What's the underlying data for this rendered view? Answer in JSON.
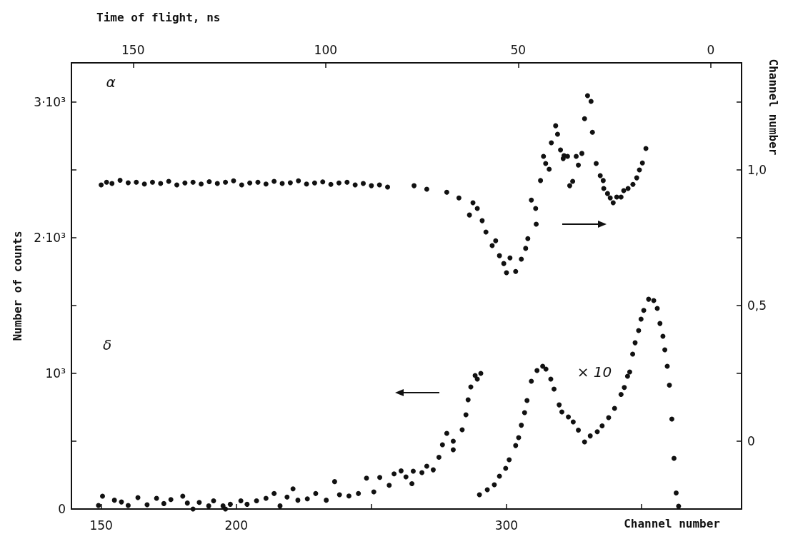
{
  "chart_data": {
    "type": "scatter",
    "xlabel": "Channel number",
    "x2label": "Time of flight, ns",
    "ylabel": "Number of counts",
    "y2label": "Channel number",
    "xlim": [
      139,
      387
    ],
    "xticks": [
      150,
      200,
      {
        "value": 250,
        "label": null
      },
      300,
      {
        "value": 350,
        "label": null
      }
    ],
    "x2lim": [
      166,
      -8
    ],
    "x2ticks": [
      150,
      100,
      50,
      0
    ],
    "ylim": [
      0,
      3290
    ],
    "yticks": [
      0,
      {
        "value": 500,
        "label": null
      },
      {
        "value": 1000,
        "label": "10³"
      },
      {
        "value": 1500,
        "label": null
      },
      {
        "value": 2000,
        "label": "2·10³"
      },
      {
        "value": 2500,
        "label": null
      },
      {
        "value": 3000,
        "label": "3·10³"
      }
    ],
    "y2lim": [
      -0.25,
      1.395
    ],
    "y2ticks": [
      {
        "value": 0,
        "label": "0"
      },
      {
        "value": 0.25,
        "label": null
      },
      {
        "value": 0.5,
        "label": "0,5"
      },
      {
        "value": 0.75,
        "label": null
      },
      {
        "value": 1,
        "label": "1,0"
      },
      {
        "value": 1.25,
        "label": null
      }
    ],
    "marker": "circle",
    "grid": false,
    "annotations": [
      "α",
      "δ",
      "× 10"
    ],
    "series": [
      {
        "color": "#111111",
        "axis": "y2",
        "x": [
          150,
          152,
          154,
          157,
          160,
          163,
          166,
          169,
          172,
          175,
          178,
          181,
          184,
          187,
          190,
          193,
          196,
          199,
          202,
          205,
          208,
          211,
          214,
          217,
          220,
          223,
          226,
          229,
          232,
          235,
          238,
          241,
          244,
          247,
          250,
          253,
          256,
          265.8,
          270.5,
          277.9,
          282.4,
          286.3,
          287.6,
          289.2,
          291,
          292.4,
          294.7,
          296,
          297.4,
          299,
          300,
          301.3,
          303.4,
          305.5,
          307.1,
          307.9,
          309.2,
          310.8,
          311,
          312.6,
          313.7,
          314.5,
          315.8,
          316.6,
          318.2,
          318.9,
          320,
          321,
          321.3,
          322.6,
          323.4,
          324.5,
          325.8,
          326.6,
          327.9,
          328.9,
          330,
          331.3,
          331.8,
          333.2,
          334.7,
          335.8,
          336,
          337.4,
          338.4,
          339.5,
          340.8,
          342.4,
          343.4,
          345,
          346.8,
          348.2,
          349.2,
          350.3,
          351.6
        ],
        "values": [
          0.945,
          0.955,
          0.95,
          0.962,
          0.953,
          0.955,
          0.948,
          0.955,
          0.95,
          0.958,
          0.945,
          0.952,
          0.955,
          0.948,
          0.957,
          0.95,
          0.955,
          0.96,
          0.945,
          0.952,
          0.955,
          0.948,
          0.958,
          0.95,
          0.953,
          0.96,
          0.948,
          0.952,
          0.956,
          0.947,
          0.952,
          0.955,
          0.945,
          0.95,
          0.942,
          0.945,
          0.937,
          0.942,
          0.929,
          0.918,
          0.897,
          0.834,
          0.879,
          0.858,
          0.813,
          0.771,
          0.721,
          0.739,
          0.684,
          0.655,
          0.621,
          0.676,
          0.626,
          0.671,
          0.711,
          0.747,
          0.889,
          0.858,
          0.8,
          0.961,
          1.05,
          1.024,
          1.003,
          1.1,
          1.163,
          1.132,
          1.074,
          1.042,
          1.053,
          1.05,
          0.942,
          0.958,
          1.05,
          1.018,
          1.061,
          1.189,
          1.274,
          1.253,
          1.139,
          1.024,
          0.979,
          0.961,
          0.932,
          0.913,
          0.897,
          0.879,
          0.9,
          0.9,
          0.924,
          0.932,
          0.947,
          0.971,
          1.0,
          1.026,
          1.079
        ]
      },
      {
        "color": "#111111",
        "x": [
          149,
          150.5,
          154.9,
          157.5,
          160,
          163.6,
          167,
          170.5,
          173.2,
          175.8,
          180.2,
          181.9,
          184,
          186.3,
          189.8,
          191.6,
          195.1,
          196,
          197.8,
          201.7,
          204,
          207.5,
          211,
          214,
          216.2,
          218.8,
          221,
          222.8,
          226.3,
          229.4,
          233.3,
          236.4,
          238.2,
          241.7,
          245.2,
          248.2,
          250.9,
          253.1,
          256.6,
          258.4,
          261,
          262.8,
          265,
          265.5,
          268.7,
          270.5,
          272.9,
          275,
          276.3,
          277.9,
          280.3,
          280.3,
          283.6,
          285,
          285.8,
          286.8,
          288.4,
          289.2,
          290.5
        ],
        "values": [
          26,
          95,
          65,
          52,
          26,
          84,
          32,
          79,
          40,
          70,
          95,
          44,
          0,
          49,
          23,
          61,
          23,
          0,
          35,
          61,
          35,
          61,
          79,
          114,
          23,
          88,
          149,
          65,
          75,
          114,
          65,
          202,
          105,
          96,
          114,
          228,
          126,
          233,
          175,
          259,
          281,
          237,
          187,
          279,
          268,
          316,
          289,
          382,
          474,
          558,
          437,
          500,
          584,
          695,
          805,
          900,
          984,
          958,
          1000
        ]
      },
      {
        "color": "#111111",
        "x": [
          290,
          292.9,
          295.5,
          297.4,
          299.7,
          301,
          303.4,
          304.5,
          305.5,
          306.7,
          307.6,
          309.2,
          311.3,
          313.4,
          314.6,
          316.4,
          317.6,
          319.5,
          320.5,
          322.9,
          324.7,
          326.6,
          328.9,
          331,
          333.6,
          335.4,
          337.8,
          340,
          342.4,
          343.6,
          344.8,
          345.6,
          346.7,
          347.6,
          348.9,
          349.8,
          350.8,
          352.6,
          354.5,
          355.8,
          356.8,
          357.9,
          358.6,
          359.5,
          360.3,
          361.2,
          362,
          362.8,
          363.7
        ],
        "values": [
          105,
          142,
          179,
          242,
          300,
          363,
          468,
          526,
          618,
          711,
          800,
          942,
          1021,
          1053,
          1032,
          958,
          884,
          768,
          716,
          679,
          642,
          582,
          495,
          539,
          570,
          613,
          674,
          742,
          845,
          896,
          979,
          1011,
          1142,
          1226,
          1316,
          1400,
          1465,
          1547,
          1537,
          1479,
          1368,
          1274,
          1174,
          1053,
          913,
          663,
          374,
          118,
          21
        ]
      }
    ]
  }
}
